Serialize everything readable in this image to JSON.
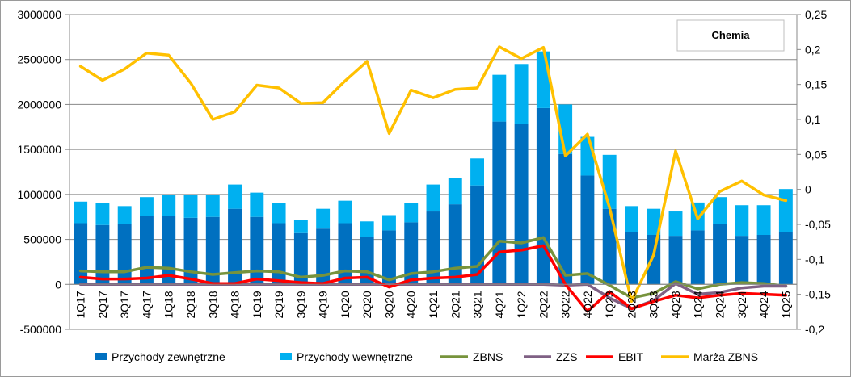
{
  "chart_data": {
    "type": "bar",
    "title": "Chemia",
    "categories": [
      "1Q17",
      "2Q17",
      "3Q17",
      "4Q17",
      "1Q18",
      "2Q18",
      "3Q18",
      "4Q18",
      "1Q19",
      "2Q19",
      "3Q19",
      "4Q19",
      "1Q20",
      "2Q20",
      "3Q20",
      "4Q20",
      "1Q21",
      "2Q21",
      "3Q21",
      "4Q21",
      "1Q22",
      "2Q22",
      "3Q22",
      "4Q22",
      "1Q23",
      "2Q23",
      "3Q23",
      "4Q23",
      "1Q24",
      "2Q24",
      "3Q24",
      "4Q24",
      "1Q25"
    ],
    "left_axis": {
      "min": -500000,
      "max": 3000000,
      "ticks": [
        "-500000",
        "0",
        "500000",
        "1000000",
        "1500000",
        "2000000",
        "2500000",
        "3000000"
      ]
    },
    "right_axis": {
      "min": -0.2,
      "max": 0.25,
      "ticks": [
        "-0,2",
        "-0,15",
        "-0,1",
        "-0,05",
        "0",
        "0,05",
        "0,1",
        "0,15",
        "0,2",
        "0,25"
      ]
    },
    "grid": true,
    "legend_position": "bottom",
    "series": [
      {
        "name": "Przychody zewnętrzne",
        "type": "stacked-bar",
        "axis": "left",
        "color": "#0070C0",
        "values": [
          680000,
          660000,
          670000,
          760000,
          760000,
          740000,
          750000,
          840000,
          750000,
          680000,
          570000,
          620000,
          680000,
          530000,
          600000,
          690000,
          810000,
          890000,
          1100000,
          1810000,
          1780000,
          1960000,
          1450000,
          1210000,
          840000,
          580000,
          550000,
          540000,
          600000,
          670000,
          540000,
          550000,
          580000
        ]
      },
      {
        "name": "Przychody wewnętrzne",
        "type": "stacked-bar",
        "axis": "left",
        "color": "#00B0F0",
        "values": [
          240000,
          240000,
          200000,
          210000,
          230000,
          250000,
          240000,
          270000,
          270000,
          220000,
          150000,
          220000,
          250000,
          170000,
          170000,
          210000,
          300000,
          290000,
          300000,
          520000,
          670000,
          630000,
          550000,
          430000,
          600000,
          290000,
          290000,
          270000,
          310000,
          300000,
          340000,
          330000,
          480000
        ]
      },
      {
        "name": "ZBNS",
        "type": "line",
        "axis": "left",
        "color": "#77933C",
        "values": [
          150000,
          140000,
          140000,
          190000,
          180000,
          140000,
          110000,
          130000,
          150000,
          140000,
          80000,
          100000,
          150000,
          140000,
          50000,
          120000,
          140000,
          180000,
          200000,
          480000,
          460000,
          520000,
          100000,
          120000,
          -10000,
          -150000,
          -100000,
          30000,
          -50000,
          0,
          20000,
          10000,
          -20000
        ]
      },
      {
        "name": "ZZS",
        "type": "line",
        "axis": "left",
        "color": "#7F6084",
        "values": [
          0,
          0,
          0,
          0,
          0,
          0,
          0,
          0,
          0,
          0,
          0,
          0,
          0,
          0,
          0,
          0,
          0,
          0,
          0,
          0,
          0,
          0,
          -10000,
          0,
          -150000,
          -270000,
          -180000,
          10000,
          -110000,
          -90000,
          -40000,
          -20000,
          -20000
        ]
      },
      {
        "name": "EBIT",
        "type": "line",
        "axis": "left",
        "color": "#FF0000",
        "values": [
          80000,
          60000,
          60000,
          70000,
          100000,
          60000,
          10000,
          10000,
          60000,
          40000,
          20000,
          10000,
          70000,
          80000,
          -30000,
          50000,
          70000,
          80000,
          110000,
          360000,
          380000,
          430000,
          0,
          -300000,
          -80000,
          -270000,
          -190000,
          -120000,
          -150000,
          -120000,
          -100000,
          -110000,
          -120000
        ]
      },
      {
        "name": "Marża ZBNS",
        "type": "line",
        "axis": "right",
        "color": "#FFC000",
        "values": [
          0.176,
          0.156,
          0.172,
          0.195,
          0.192,
          0.152,
          0.1,
          0.111,
          0.149,
          0.145,
          0.123,
          0.124,
          0.155,
          0.183,
          0.08,
          0.142,
          0.131,
          0.143,
          0.145,
          0.204,
          0.187,
          0.203,
          0.048,
          0.079,
          -0.026,
          -0.16,
          -0.094,
          0.055,
          -0.042,
          -0.003,
          0.012,
          -0.008,
          -0.016
        ]
      }
    ]
  }
}
